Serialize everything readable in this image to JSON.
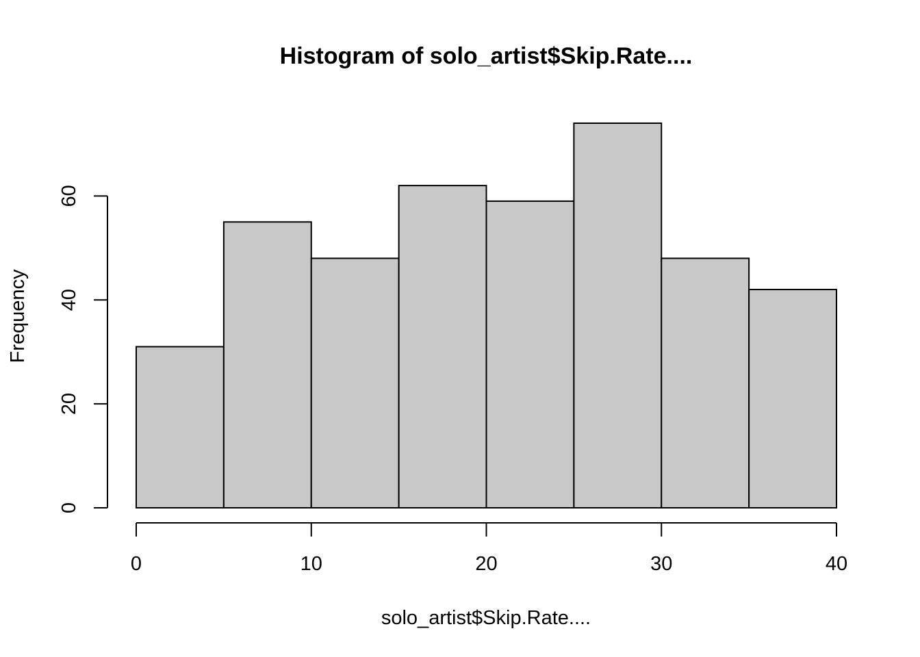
{
  "chart_data": {
    "type": "bar",
    "title": "Histogram of solo_artist$Skip.Rate....",
    "xlabel": "solo_artist$Skip.Rate....",
    "ylabel": "Frequency",
    "bins": [
      {
        "start": 0,
        "end": 5,
        "count": 31
      },
      {
        "start": 5,
        "end": 10,
        "count": 55
      },
      {
        "start": 10,
        "end": 15,
        "count": 48
      },
      {
        "start": 15,
        "end": 20,
        "count": 62
      },
      {
        "start": 20,
        "end": 25,
        "count": 59
      },
      {
        "start": 25,
        "end": 30,
        "count": 74
      },
      {
        "start": 30,
        "end": 35,
        "count": 48
      },
      {
        "start": 35,
        "end": 40,
        "count": 42
      }
    ],
    "xlim": [
      0,
      40
    ],
    "ylim": [
      0,
      74
    ],
    "x_ticks": [
      0,
      10,
      20,
      30,
      40
    ],
    "y_ticks": [
      0,
      20,
      40,
      60
    ],
    "grid": false,
    "bar_color": "#c8c8c8",
    "edge_color": "#000000"
  }
}
